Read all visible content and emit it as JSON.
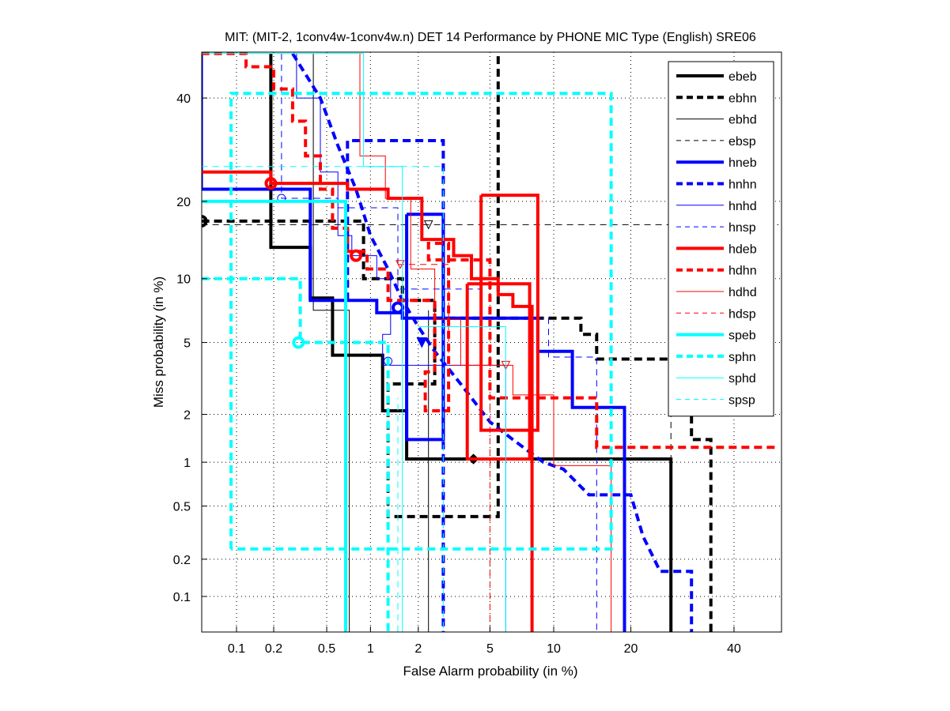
{
  "chart_data": {
    "type": "line",
    "subtype": "DET (normal-deviate scale)",
    "title": "MIT: (MIT-2, 1conv4w-1conv4w.n) DET 14 Performance by PHONE MIC Type (English) SRE06",
    "xlabel": "False Alarm probability (in %)",
    "ylabel": "Miss probability (in %)",
    "xlim": [
      0.05,
      50
    ],
    "ylim": [
      0.05,
      50
    ],
    "xticks": [
      0.1,
      0.2,
      0.5,
      1,
      2,
      5,
      10,
      20,
      40
    ],
    "xtick_labels": [
      "0.1",
      "0.2",
      "0.5",
      "1",
      "2",
      "5",
      "10",
      "20",
      "40"
    ],
    "yticks": [
      0.1,
      0.2,
      0.5,
      1,
      2,
      5,
      10,
      20,
      40
    ],
    "ytick_labels": [
      "0.1",
      "0.2",
      "0.5",
      "1",
      "2",
      "5",
      "10",
      "20",
      "40"
    ],
    "grid": true,
    "legend_position": "top-right",
    "series": [
      {
        "name": "ebeb",
        "color": "#000000",
        "style": "solid-thick",
        "points": [
          [
            0.19,
            50
          ],
          [
            0.19,
            13.5
          ],
          [
            0.38,
            13.5
          ],
          [
            0.38,
            8.2
          ],
          [
            0.55,
            8.2
          ],
          [
            0.55,
            4.3
          ],
          [
            1.2,
            4.3
          ],
          [
            1.2,
            2.1
          ],
          [
            1.7,
            2.1
          ],
          [
            1.7,
            1.05
          ],
          [
            27,
            1.05
          ],
          [
            27,
            0.05
          ]
        ],
        "marker": [
          4.1,
          1.05
        ],
        "marker_shape": "diamond"
      },
      {
        "name": "ebhn",
        "color": "#000000",
        "style": "dashed-thick",
        "points": [
          [
            0.05,
            17
          ],
          [
            0.9,
            17
          ],
          [
            0.9,
            10
          ],
          [
            1.6,
            10
          ],
          [
            1.6,
            8
          ],
          [
            2.5,
            8
          ],
          [
            2.5,
            3
          ],
          [
            1.3,
            3
          ],
          [
            1.3,
            0.42
          ],
          [
            5.5,
            0.42
          ],
          [
            5.5,
            50
          ]
        ],
        "extra": [
          [
            2.5,
            6.6
          ],
          [
            13,
            6.6
          ],
          [
            13,
            5.5
          ],
          [
            15,
            5.5
          ],
          [
            15,
            4.1
          ],
          [
            31,
            4.1
          ],
          [
            31,
            1.4
          ],
          [
            35,
            1.4
          ],
          [
            35,
            0.05
          ]
        ],
        "marker": [
          0.05,
          17
        ],
        "marker_shape": "circle"
      },
      {
        "name": "ebhd",
        "color": "#000000",
        "style": "solid-thin",
        "points": [
          [
            0.4,
            50
          ],
          [
            0.4,
            7.2
          ],
          [
            0.72,
            7.2
          ],
          [
            0.72,
            0.05
          ]
        ],
        "extra": [
          [
            2.3,
            7.2
          ],
          [
            2.3,
            0.05
          ]
        ]
      },
      {
        "name": "ebsp",
        "color": "#000000",
        "style": "dashed-thin",
        "points": [
          [
            0.05,
            16.5
          ],
          [
            50,
            16.5
          ]
        ],
        "extra": [
          [
            27,
            6.3
          ],
          [
            27,
            0.05
          ]
        ],
        "marker": [
          2.3,
          16.5
        ],
        "marker_shape": "triangle-down"
      },
      {
        "name": "hneb",
        "color": "#0000ff",
        "style": "solid-thick",
        "points": [
          [
            0.05,
            50
          ],
          [
            0.05,
            22
          ],
          [
            0.38,
            22
          ],
          [
            0.38,
            8
          ],
          [
            1.1,
            8
          ],
          [
            1.1,
            7
          ],
          [
            1.6,
            7
          ],
          [
            1.6,
            6.6
          ],
          [
            8.5,
            6.6
          ],
          [
            8.5,
            4.5
          ],
          [
            12,
            4.5
          ],
          [
            12,
            2.2
          ],
          [
            19,
            2.2
          ],
          [
            19,
            0.05
          ]
        ],
        "boxes": [
          [
            1.7,
            18
          ],
          [
            2.8,
            18
          ],
          [
            2.8,
            1.4
          ],
          [
            1.7,
            1.4
          ],
          [
            1.7,
            18
          ]
        ],
        "marker": [
          1.5,
          7.4
        ],
        "marker_shape": "circle"
      },
      {
        "name": "hnhn",
        "color": "#0000ff",
        "style": "dashed-thick",
        "points": [
          [
            0.28,
            50
          ],
          [
            0.45,
            40
          ],
          [
            0.6,
            30
          ],
          [
            0.8,
            22
          ],
          [
            1,
            15
          ],
          [
            1.3,
            11
          ],
          [
            1.6,
            8
          ],
          [
            2,
            6
          ],
          [
            2.5,
            4.5
          ],
          [
            3.5,
            3
          ],
          [
            5,
            1.8
          ],
          [
            6.5,
            1.4
          ],
          [
            9,
            1.0
          ],
          [
            11,
            0.9
          ],
          [
            14,
            0.6
          ],
          [
            20,
            0.6
          ],
          [
            22,
            0.3
          ],
          [
            25,
            0.16
          ],
          [
            31,
            0.16
          ],
          [
            31,
            0.05
          ]
        ],
        "extra": [
          [
            0.7,
            8
          ],
          [
            0.7,
            31
          ],
          [
            2.8,
            31
          ],
          [
            2.8,
            0.05
          ]
        ],
        "marker": [
          2.1,
          5.0
        ],
        "marker_shape": "triangle-down"
      },
      {
        "name": "hnhd",
        "color": "#0000ff",
        "style": "solid-thin",
        "points": [
          [
            0.3,
            50
          ],
          [
            0.3,
            40
          ],
          [
            0.45,
            40
          ],
          [
            0.45,
            25
          ],
          [
            0.6,
            25
          ],
          [
            0.6,
            15
          ],
          [
            0.75,
            15
          ],
          [
            0.75,
            12.5
          ],
          [
            1.1,
            12.5
          ],
          [
            1.1,
            10
          ],
          [
            1.35,
            10
          ],
          [
            1.35,
            5.5
          ],
          [
            1.2,
            5.5
          ],
          [
            1.2,
            3.8
          ],
          [
            6,
            3.8
          ],
          [
            6,
            0.05
          ]
        ],
        "marker": [
          1.3,
          4.0
        ],
        "marker_shape": "circle"
      },
      {
        "name": "hnsp",
        "color": "#0000ff",
        "style": "dashed-thin",
        "points": [
          [
            0.23,
            50
          ],
          [
            0.23,
            20.5
          ],
          [
            0.6,
            20.5
          ],
          [
            0.6,
            19
          ],
          [
            1.5,
            19
          ],
          [
            1.5,
            9
          ],
          [
            4.5,
            9
          ],
          [
            4.5,
            6.6
          ],
          [
            9.5,
            6.6
          ],
          [
            9.5,
            4.2
          ],
          [
            15,
            4.2
          ],
          [
            15,
            0.05
          ]
        ],
        "marker": [
          0.23,
          20.5
        ],
        "marker_shape": "circle"
      },
      {
        "name": "hdeb",
        "color": "#ff0000",
        "style": "solid-thick",
        "points": [
          [
            0.05,
            25
          ],
          [
            0.19,
            25
          ],
          [
            0.19,
            23
          ],
          [
            0.7,
            23
          ],
          [
            0.7,
            22
          ],
          [
            1.3,
            22
          ],
          [
            1.3,
            20.5
          ],
          [
            2.1,
            20.5
          ],
          [
            2.1,
            14.5
          ],
          [
            3.2,
            14.5
          ],
          [
            3.2,
            12.5
          ],
          [
            4,
            12.5
          ],
          [
            4,
            10
          ],
          [
            5.5,
            10
          ],
          [
            5.5,
            8.5
          ],
          [
            6.5,
            8.5
          ],
          [
            6.5,
            7.5
          ],
          [
            8,
            7.5
          ],
          [
            8,
            0.05
          ]
        ],
        "boxes": [
          [
            4.5,
            21
          ],
          [
            8.5,
            21
          ],
          [
            8.5,
            1.6
          ],
          [
            4.5,
            1.6
          ],
          [
            4.5,
            21
          ]
        ],
        "extra_box": [
          [
            3.8,
            9.5
          ],
          [
            7.8,
            9.5
          ],
          [
            7.8,
            1.05
          ],
          [
            3.8,
            1.05
          ],
          [
            3.8,
            9.5
          ]
        ],
        "marker": [
          0.19,
          23
        ],
        "marker_shape": "circle"
      },
      {
        "name": "hdhn",
        "color": "#ff0000",
        "style": "dashed-thick",
        "points": [
          [
            0.05,
            50
          ],
          [
            0.12,
            50
          ],
          [
            0.12,
            47
          ],
          [
            0.2,
            47
          ],
          [
            0.2,
            42
          ],
          [
            0.28,
            42
          ],
          [
            0.28,
            35
          ],
          [
            0.35,
            35
          ],
          [
            0.35,
            28
          ],
          [
            0.45,
            28
          ],
          [
            0.45,
            22
          ],
          [
            0.55,
            22
          ],
          [
            0.55,
            16
          ],
          [
            0.7,
            16
          ],
          [
            0.7,
            13
          ],
          [
            0.95,
            13
          ],
          [
            0.95,
            11
          ],
          [
            1.3,
            11
          ],
          [
            1.3,
            8
          ],
          [
            2.5,
            8
          ],
          [
            2.5,
            3.5
          ],
          [
            2.2,
            3.5
          ],
          [
            2.2,
            2.1
          ],
          [
            3,
            2.1
          ],
          [
            3,
            14
          ],
          [
            2.3,
            14
          ],
          [
            2.3,
            12
          ],
          [
            5,
            12
          ],
          [
            5,
            2.5
          ],
          [
            15,
            2.5
          ],
          [
            15,
            1.25
          ],
          [
            50,
            1.25
          ]
        ],
        "marker": [
          0.8,
          12.5
        ],
        "marker_shape": "circle"
      },
      {
        "name": "hdhd",
        "color": "#ff0000",
        "style": "solid-thin",
        "points": [
          [
            0.85,
            50
          ],
          [
            0.85,
            28
          ],
          [
            1.25,
            28
          ],
          [
            1.25,
            20.5
          ],
          [
            1.8,
            20.5
          ],
          [
            1.8,
            11
          ],
          [
            2.5,
            11
          ],
          [
            2.5,
            6.5
          ],
          [
            3.5,
            6.5
          ],
          [
            3.5,
            3.8
          ],
          [
            6.5,
            3.8
          ],
          [
            6.5,
            2.6
          ],
          [
            10,
            2.6
          ],
          [
            10,
            0.95
          ],
          [
            17,
            0.95
          ],
          [
            17,
            0.05
          ]
        ],
        "marker": [
          6.0,
          3.8
        ],
        "marker_shape": "triangle-down"
      },
      {
        "name": "hdsp",
        "color": "#ff0000",
        "style": "dashed-thin",
        "points": [
          [
            1.5,
            11.5
          ],
          [
            3,
            11.5
          ],
          [
            3,
            3.8
          ],
          [
            5,
            3.8
          ],
          [
            5,
            0.05
          ]
        ],
        "marker": [
          1.55,
          11.5
        ],
        "marker_shape": "triangle-down"
      },
      {
        "name": "speb",
        "color": "#00ffff",
        "style": "solid-thick",
        "points": [
          [
            0.05,
            20
          ],
          [
            0.68,
            20
          ],
          [
            0.68,
            0.05
          ]
        ]
      },
      {
        "name": "sphn",
        "color": "#00ffff",
        "style": "dashed-thick",
        "points": [
          [
            0.05,
            10
          ],
          [
            0.32,
            10
          ],
          [
            0.32,
            5
          ],
          [
            1.3,
            5
          ],
          [
            1.3,
            0.05
          ]
        ],
        "boxes": [
          [
            0.09,
            0.24
          ],
          [
            0.09,
            41
          ],
          [
            17,
            41
          ],
          [
            17,
            0.24
          ],
          [
            0.09,
            0.24
          ]
        ],
        "marker": [
          0.31,
          5
        ],
        "marker_shape": "circle"
      },
      {
        "name": "sphd",
        "color": "#00ffff",
        "style": "solid-thin",
        "points": [
          [
            0.05,
            50
          ],
          [
            0.9,
            50
          ],
          [
            0.9,
            26
          ],
          [
            1.6,
            26
          ],
          [
            1.6,
            0.05
          ]
        ],
        "extra": [
          [
            2.0,
            6
          ],
          [
            6,
            6
          ],
          [
            6,
            0.05
          ]
        ]
      },
      {
        "name": "spsp",
        "color": "#00ffff",
        "style": "dashed-thin",
        "points": [
          [
            0.05,
            26
          ],
          [
            2.8,
            26
          ],
          [
            2.8,
            0.05
          ]
        ],
        "extra": [
          [
            1.5,
            0.05
          ],
          [
            1.5,
            2.5
          ]
        ]
      }
    ]
  }
}
